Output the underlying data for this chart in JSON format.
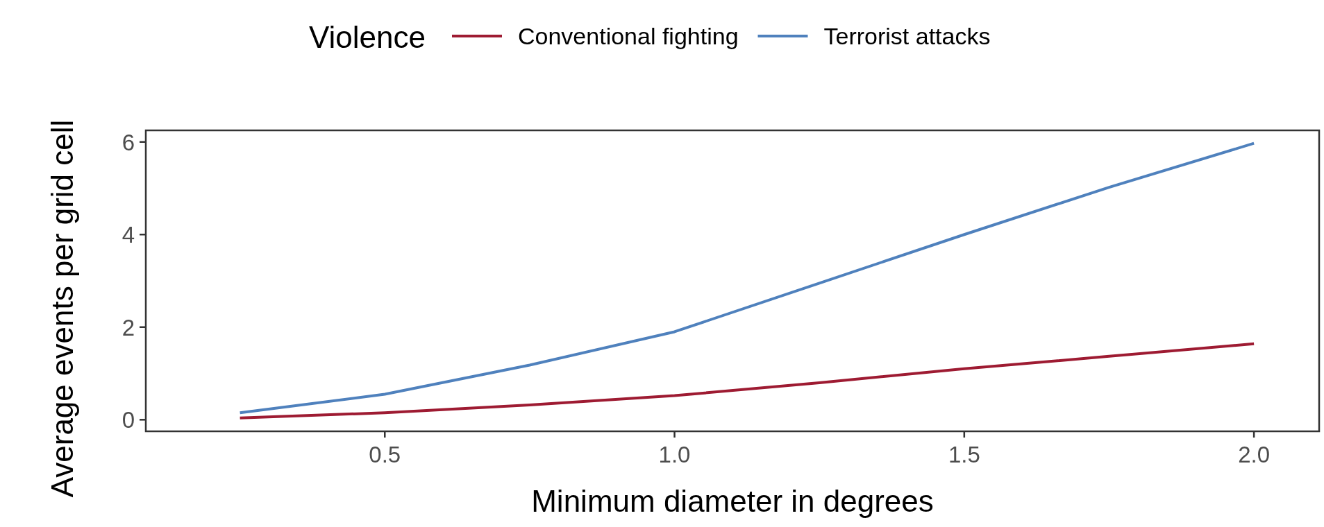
{
  "chart_data": {
    "type": "line",
    "xlabel": "Minimum diameter in degrees",
    "ylabel": "Average events per grid cell",
    "legend_title": "Violence",
    "x": [
      0.25,
      0.5,
      0.75,
      1.0,
      1.25,
      1.5,
      1.75,
      2.0
    ],
    "series": [
      {
        "name": "Conventional fighting",
        "color": "#9e1b32",
        "values": [
          0.04,
          0.15,
          0.32,
          0.52,
          0.8,
          1.1,
          1.37,
          1.64
        ]
      },
      {
        "name": "Terrorist attacks",
        "color": "#4f81bd",
        "values": [
          0.15,
          0.55,
          1.18,
          1.9,
          2.95,
          4.0,
          5.02,
          5.97
        ]
      }
    ],
    "xlim": [
      0.0875,
      2.1125
    ],
    "xticks": [
      {
        "value": 0.5,
        "label": "0.5"
      },
      {
        "value": 1.0,
        "label": "1.0"
      },
      {
        "value": 1.5,
        "label": "1.5"
      },
      {
        "value": 2.0,
        "label": "2.0"
      }
    ],
    "ylim": [
      -0.25,
      6.25
    ],
    "yticks": [
      0,
      2,
      4,
      6
    ],
    "grid": false,
    "legend": "top",
    "marker": "none",
    "line_style": "solid"
  }
}
